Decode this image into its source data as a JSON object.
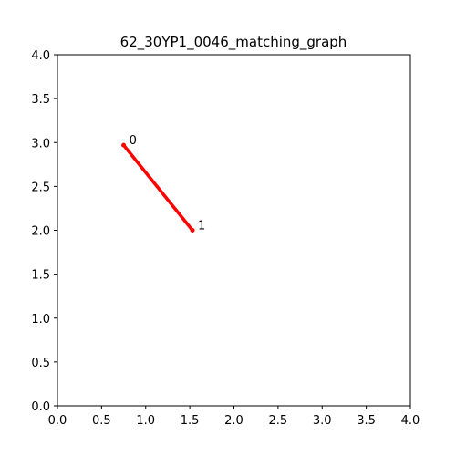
{
  "chart_data": {
    "type": "line",
    "title": "62_30YP1_0046_matching_graph",
    "xlabel": "",
    "ylabel": "",
    "xlim": [
      0,
      4
    ],
    "ylim": [
      0,
      4
    ],
    "x_ticks": [
      "0.0",
      "0.5",
      "1.0",
      "1.5",
      "2.0",
      "2.5",
      "3.0",
      "3.5",
      "4.0"
    ],
    "y_ticks": [
      "0.0",
      "0.5",
      "1.0",
      "1.5",
      "2.0",
      "2.5",
      "3.0",
      "3.5",
      "4.0"
    ],
    "grid": false,
    "nodes": [
      {
        "label": "0",
        "x": 0.75,
        "y": 2.97
      },
      {
        "label": "1",
        "x": 1.53,
        "y": 2.0
      }
    ],
    "edges": [
      {
        "from": 0,
        "to": 1,
        "color": "#ff0000"
      }
    ],
    "edge_color": "#ff0000"
  }
}
